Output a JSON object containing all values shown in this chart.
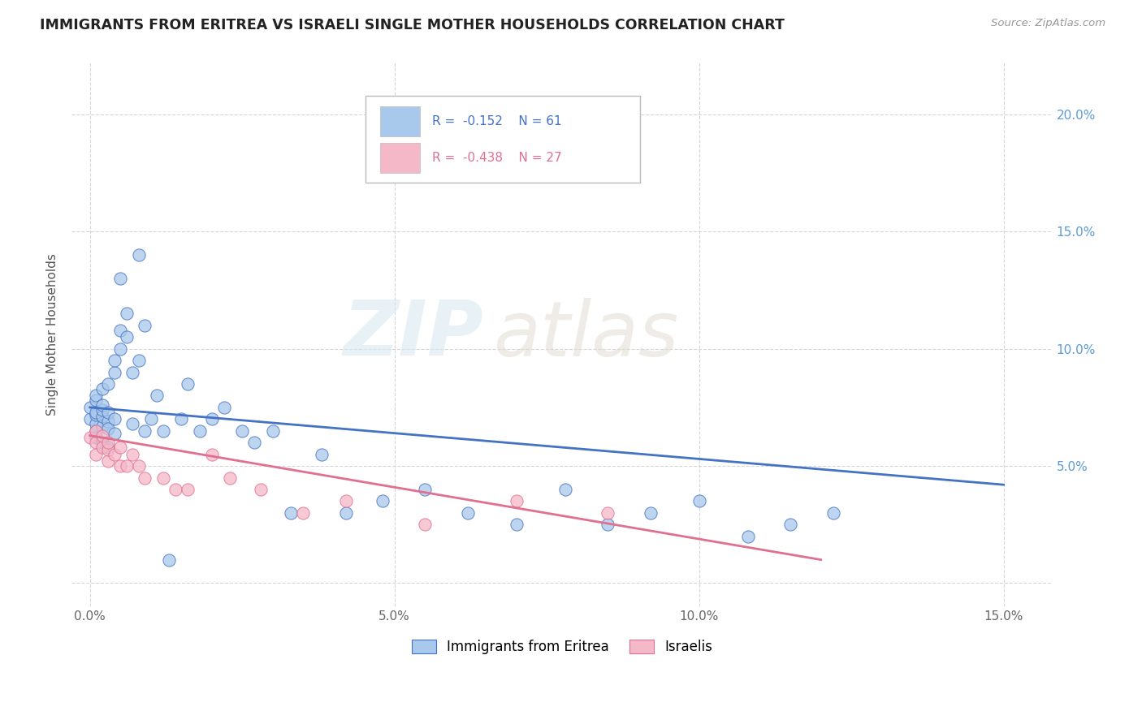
{
  "title": "IMMIGRANTS FROM ERITREA VS ISRAELI SINGLE MOTHER HOUSEHOLDS CORRELATION CHART",
  "source": "Source: ZipAtlas.com",
  "ylabel": "Single Mother Households",
  "blue_color": "#A8C8EC",
  "pink_color": "#F5B8C8",
  "blue_line_color": "#4472C4",
  "pink_line_color": "#E07090",
  "watermark_zip": "ZIP",
  "watermark_atlas": "atlas",
  "blue_scatter_x": [
    0.0,
    0.0,
    0.001,
    0.001,
    0.001,
    0.001,
    0.001,
    0.001,
    0.001,
    0.002,
    0.002,
    0.002,
    0.002,
    0.002,
    0.002,
    0.003,
    0.003,
    0.003,
    0.003,
    0.003,
    0.004,
    0.004,
    0.004,
    0.004,
    0.005,
    0.005,
    0.005,
    0.006,
    0.006,
    0.007,
    0.007,
    0.008,
    0.008,
    0.009,
    0.009,
    0.01,
    0.011,
    0.012,
    0.013,
    0.015,
    0.016,
    0.018,
    0.02,
    0.022,
    0.025,
    0.027,
    0.03,
    0.033,
    0.038,
    0.042,
    0.048,
    0.055,
    0.062,
    0.07,
    0.078,
    0.085,
    0.092,
    0.1,
    0.108,
    0.115,
    0.122
  ],
  "blue_scatter_y": [
    0.07,
    0.075,
    0.068,
    0.072,
    0.078,
    0.065,
    0.08,
    0.062,
    0.073,
    0.067,
    0.071,
    0.074,
    0.06,
    0.076,
    0.083,
    0.069,
    0.066,
    0.073,
    0.058,
    0.085,
    0.064,
    0.07,
    0.09,
    0.095,
    0.1,
    0.108,
    0.13,
    0.105,
    0.115,
    0.09,
    0.068,
    0.095,
    0.14,
    0.11,
    0.065,
    0.07,
    0.08,
    0.065,
    0.01,
    0.07,
    0.085,
    0.065,
    0.07,
    0.075,
    0.065,
    0.06,
    0.065,
    0.03,
    0.055,
    0.03,
    0.035,
    0.04,
    0.03,
    0.025,
    0.04,
    0.025,
    0.03,
    0.035,
    0.02,
    0.025,
    0.03
  ],
  "pink_scatter_x": [
    0.0,
    0.001,
    0.001,
    0.001,
    0.002,
    0.002,
    0.003,
    0.003,
    0.003,
    0.004,
    0.005,
    0.005,
    0.006,
    0.007,
    0.008,
    0.009,
    0.012,
    0.014,
    0.016,
    0.02,
    0.023,
    0.028,
    0.035,
    0.042,
    0.055,
    0.07,
    0.085
  ],
  "pink_scatter_y": [
    0.062,
    0.06,
    0.065,
    0.055,
    0.058,
    0.063,
    0.052,
    0.057,
    0.06,
    0.055,
    0.058,
    0.05,
    0.05,
    0.055,
    0.05,
    0.045,
    0.045,
    0.04,
    0.04,
    0.055,
    0.045,
    0.04,
    0.03,
    0.035,
    0.025,
    0.035,
    0.03
  ],
  "blue_trend_x": [
    0.0,
    0.15
  ],
  "blue_trend_y": [
    0.075,
    0.042
  ],
  "pink_trend_x": [
    0.0,
    0.12
  ],
  "pink_trend_y": [
    0.063,
    0.01
  ],
  "xlim": [
    -0.003,
    0.158
  ],
  "ylim": [
    -0.01,
    0.222
  ],
  "xticks": [
    0.0,
    0.05,
    0.1,
    0.15
  ],
  "xticklabels": [
    "0.0%",
    "5.0%",
    "10.0%",
    "15.0%"
  ],
  "yticks": [
    0.0,
    0.05,
    0.1,
    0.15,
    0.2
  ],
  "ytick_right_labels": [
    "5.0%",
    "10.0%",
    "15.0%",
    "20.0%"
  ],
  "legend_blue_text": "R =  -0.152    N = 61",
  "legend_pink_text": "R =  -0.438    N = 27"
}
